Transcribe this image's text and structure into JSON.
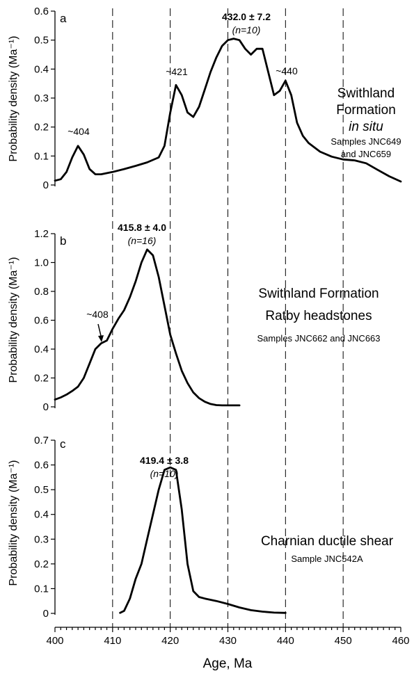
{
  "chart_data": {
    "type": "line",
    "xlabel": "Age, Ma",
    "xlim": [
      400,
      460
    ],
    "x_ticks": [
      "400",
      "410",
      "420",
      "430",
      "440",
      "450",
      "460"
    ],
    "reference_lines_x": [
      410,
      420,
      430,
      440,
      450
    ],
    "panels": [
      {
        "letter": "a",
        "ylabel": "Probability density (Ma⁻¹)",
        "ylim": [
          0,
          0.6
        ],
        "y_ticks": [
          "0",
          "0.1",
          "0.2",
          "0.3",
          "0.4",
          "0.5",
          "0.6"
        ],
        "curve": [
          [
            400,
            0.015
          ],
          [
            401,
            0.02
          ],
          [
            402,
            0.045
          ],
          [
            403,
            0.095
          ],
          [
            404,
            0.135
          ],
          [
            405,
            0.105
          ],
          [
            406,
            0.055
          ],
          [
            407,
            0.037
          ],
          [
            408,
            0.037
          ],
          [
            410,
            0.045
          ],
          [
            412,
            0.055
          ],
          [
            414,
            0.066
          ],
          [
            416,
            0.078
          ],
          [
            418,
            0.095
          ],
          [
            419,
            0.135
          ],
          [
            420,
            0.25
          ],
          [
            421,
            0.345
          ],
          [
            422,
            0.31
          ],
          [
            423,
            0.25
          ],
          [
            424,
            0.235
          ],
          [
            425,
            0.27
          ],
          [
            426,
            0.33
          ],
          [
            427,
            0.39
          ],
          [
            428,
            0.44
          ],
          [
            429,
            0.48
          ],
          [
            430,
            0.5
          ],
          [
            431,
            0.505
          ],
          [
            432,
            0.5
          ],
          [
            433,
            0.47
          ],
          [
            434,
            0.45
          ],
          [
            435,
            0.47
          ],
          [
            436,
            0.47
          ],
          [
            437,
            0.39
          ],
          [
            438,
            0.31
          ],
          [
            439,
            0.325
          ],
          [
            440,
            0.36
          ],
          [
            441,
            0.31
          ],
          [
            442,
            0.215
          ],
          [
            443,
            0.17
          ],
          [
            444,
            0.145
          ],
          [
            446,
            0.115
          ],
          [
            448,
            0.098
          ],
          [
            450,
            0.088
          ],
          [
            452,
            0.085
          ],
          [
            454,
            0.075
          ],
          [
            456,
            0.052
          ],
          [
            458,
            0.03
          ],
          [
            460,
            0.012
          ]
        ],
        "annotations": [
          {
            "label": "~404",
            "x": 404,
            "y": 0.135
          },
          {
            "label": "~421",
            "x": 421,
            "y": 0.345
          },
          {
            "label": "~440",
            "x": 440,
            "y": 0.36
          }
        ],
        "peak": {
          "label": "432.0 ± 7.2",
          "n": "(n=10)",
          "x": 432
        },
        "side_text": [
          "Swithland",
          "Formation",
          "in situ",
          "Samples JNC649",
          "and JNC659"
        ]
      },
      {
        "letter": "b",
        "ylabel": "Probability density (Ma⁻¹)",
        "ylim": [
          0,
          1.2
        ],
        "y_ticks": [
          "0",
          "0.2",
          "0.4",
          "0.6",
          "0.8",
          "1.0",
          "1.2"
        ],
        "curve": [
          [
            400,
            0.05
          ],
          [
            401,
            0.065
          ],
          [
            402,
            0.085
          ],
          [
            403,
            0.11
          ],
          [
            404,
            0.14
          ],
          [
            405,
            0.2
          ],
          [
            406,
            0.3
          ],
          [
            407,
            0.4
          ],
          [
            408,
            0.44
          ],
          [
            409,
            0.46
          ],
          [
            410,
            0.54
          ],
          [
            411,
            0.61
          ],
          [
            412,
            0.67
          ],
          [
            413,
            0.76
          ],
          [
            414,
            0.87
          ],
          [
            415,
            1.0
          ],
          [
            416,
            1.09
          ],
          [
            417,
            1.05
          ],
          [
            418,
            0.9
          ],
          [
            419,
            0.7
          ],
          [
            420,
            0.5
          ],
          [
            421,
            0.37
          ],
          [
            422,
            0.25
          ],
          [
            423,
            0.165
          ],
          [
            424,
            0.1
          ],
          [
            425,
            0.06
          ],
          [
            426,
            0.035
          ],
          [
            427,
            0.02
          ],
          [
            428,
            0.012
          ],
          [
            429,
            0.01
          ],
          [
            430,
            0.01
          ],
          [
            431,
            0.01
          ],
          [
            432,
            0.01
          ]
        ],
        "annotations": [
          {
            "label": "~408",
            "x": 408.3,
            "y": 0.45
          }
        ],
        "peak": {
          "label": "415.8 ± 4.0",
          "n": "(n=16)",
          "x": 415.8
        },
        "side_text": [
          "Swithland Formation",
          "Ratby headstones",
          "Samples JNC662 and JNC663"
        ]
      },
      {
        "letter": "c",
        "ylabel": "Probability density (Ma⁻¹)",
        "ylim": [
          0,
          0.7
        ],
        "y_ticks": [
          "0",
          "0.1",
          "0.2",
          "0.3",
          "0.4",
          "0.5",
          "0.6",
          "0.7"
        ],
        "curve": [
          [
            411.3,
            0.002
          ],
          [
            412,
            0.01
          ],
          [
            413,
            0.06
          ],
          [
            414,
            0.14
          ],
          [
            415,
            0.2
          ],
          [
            416,
            0.3
          ],
          [
            417,
            0.4
          ],
          [
            418,
            0.5
          ],
          [
            419,
            0.58
          ],
          [
            420,
            0.59
          ],
          [
            421,
            0.58
          ],
          [
            422,
            0.42
          ],
          [
            423,
            0.2
          ],
          [
            424,
            0.09
          ],
          [
            425,
            0.066
          ],
          [
            426,
            0.06
          ],
          [
            428,
            0.05
          ],
          [
            430,
            0.038
          ],
          [
            432,
            0.024
          ],
          [
            434,
            0.013
          ],
          [
            436,
            0.007
          ],
          [
            438,
            0.003
          ],
          [
            440,
            0.002
          ]
        ],
        "annotations": [],
        "peak": {
          "label": "419.4 ± 3.8",
          "n": "(n=10)",
          "x": 419.4
        },
        "side_text": [
          "Charnian ductile shear",
          "Sample JNC542A"
        ]
      }
    ]
  }
}
